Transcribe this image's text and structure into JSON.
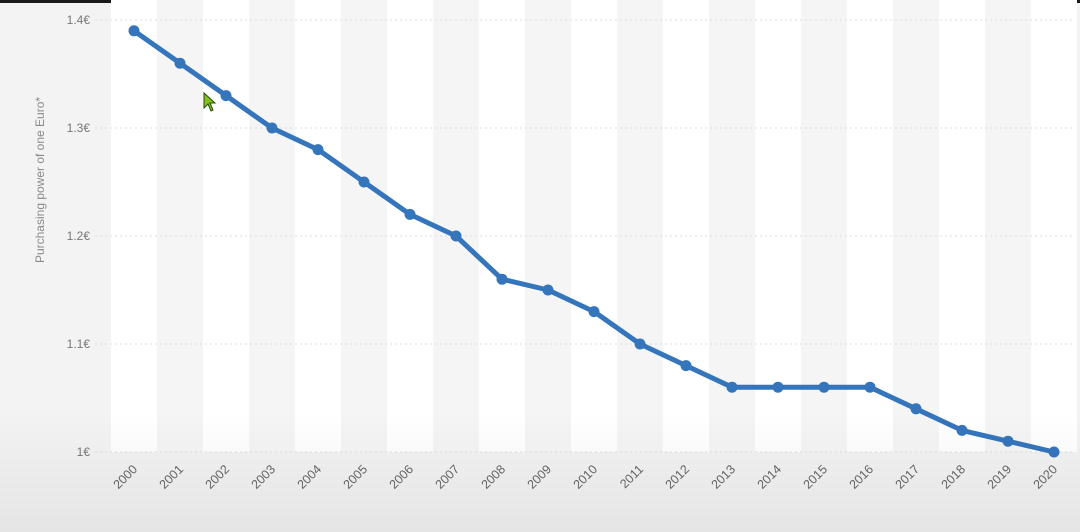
{
  "chart_data": {
    "type": "line",
    "title": "",
    "xlabel": "",
    "ylabel": "Purchasing power of one Euro*",
    "ylim": [
      1.0,
      1.4
    ],
    "yticks": [
      {
        "value": 1.4,
        "label": "1.4€"
      },
      {
        "value": 1.3,
        "label": "1.3€"
      },
      {
        "value": 1.2,
        "label": "1.2€"
      },
      {
        "value": 1.1,
        "label": "1.1€"
      },
      {
        "value": 1.0,
        "label": "1€"
      }
    ],
    "grid": true,
    "legend": "none",
    "color": "#3575bc",
    "x": [
      "2000",
      "2001",
      "2002",
      "2003",
      "2004",
      "2005",
      "2006",
      "2007",
      "2008",
      "2009",
      "2010",
      "2011",
      "2012",
      "2013",
      "2014",
      "2015",
      "2016",
      "2017",
      "2018",
      "2019",
      "2020"
    ],
    "series": [
      {
        "values": [
          1.39,
          1.36,
          1.33,
          1.3,
          1.28,
          1.25,
          1.22,
          1.2,
          1.16,
          1.15,
          1.13,
          1.1,
          1.08,
          1.06,
          1.06,
          1.06,
          1.06,
          1.04,
          1.02,
          1.01,
          1.0
        ]
      }
    ]
  },
  "cursor": {
    "icon": "mouse-pointer-icon"
  }
}
